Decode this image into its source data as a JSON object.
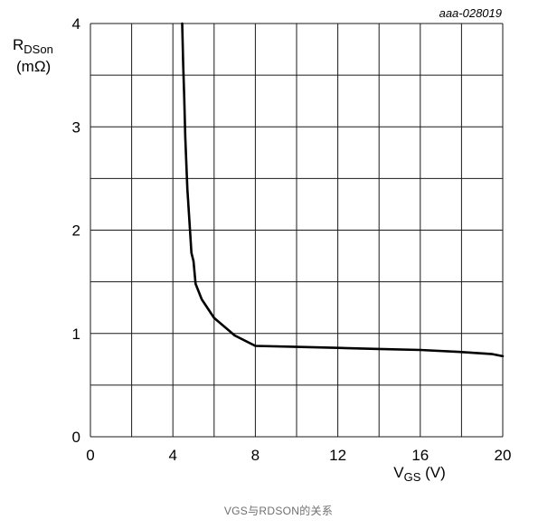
{
  "chart_data": {
    "type": "line",
    "figure_id": "aaa-028019",
    "xlabel": {
      "main": "V",
      "sub": "GS",
      "unit": " (V)"
    },
    "ylabel": {
      "main": "R",
      "sub": "DSon",
      "unit": "(mΩ)"
    },
    "xlim": [
      0,
      20
    ],
    "ylim": [
      0,
      4
    ],
    "x_ticks": [
      0,
      4,
      8,
      12,
      16,
      20
    ],
    "y_ticks": [
      0,
      1,
      2,
      3,
      4
    ],
    "x_grid": [
      0,
      2,
      4,
      6,
      8,
      10,
      12,
      14,
      16,
      18,
      20
    ],
    "y_grid": [
      0,
      0.5,
      1,
      1.5,
      2,
      2.5,
      3,
      3.5,
      4
    ],
    "grid": true,
    "series": [
      {
        "name": "RDSon vs VGS",
        "color": "#000000",
        "x": [
          4.45,
          4.5,
          4.55,
          4.6,
          4.7,
          4.8,
          4.9,
          5.0,
          5.1,
          5.4,
          6.0,
          7.0,
          8.0,
          10.0,
          12.0,
          14.0,
          16.0,
          18.0,
          19.5,
          20.0
        ],
        "y": [
          4.0,
          3.6,
          3.3,
          2.9,
          2.4,
          2.1,
          1.78,
          1.7,
          1.48,
          1.33,
          1.15,
          0.98,
          0.88,
          0.87,
          0.86,
          0.85,
          0.84,
          0.82,
          0.8,
          0.78
        ]
      }
    ]
  },
  "caption": "VGS与RDSON的关系"
}
